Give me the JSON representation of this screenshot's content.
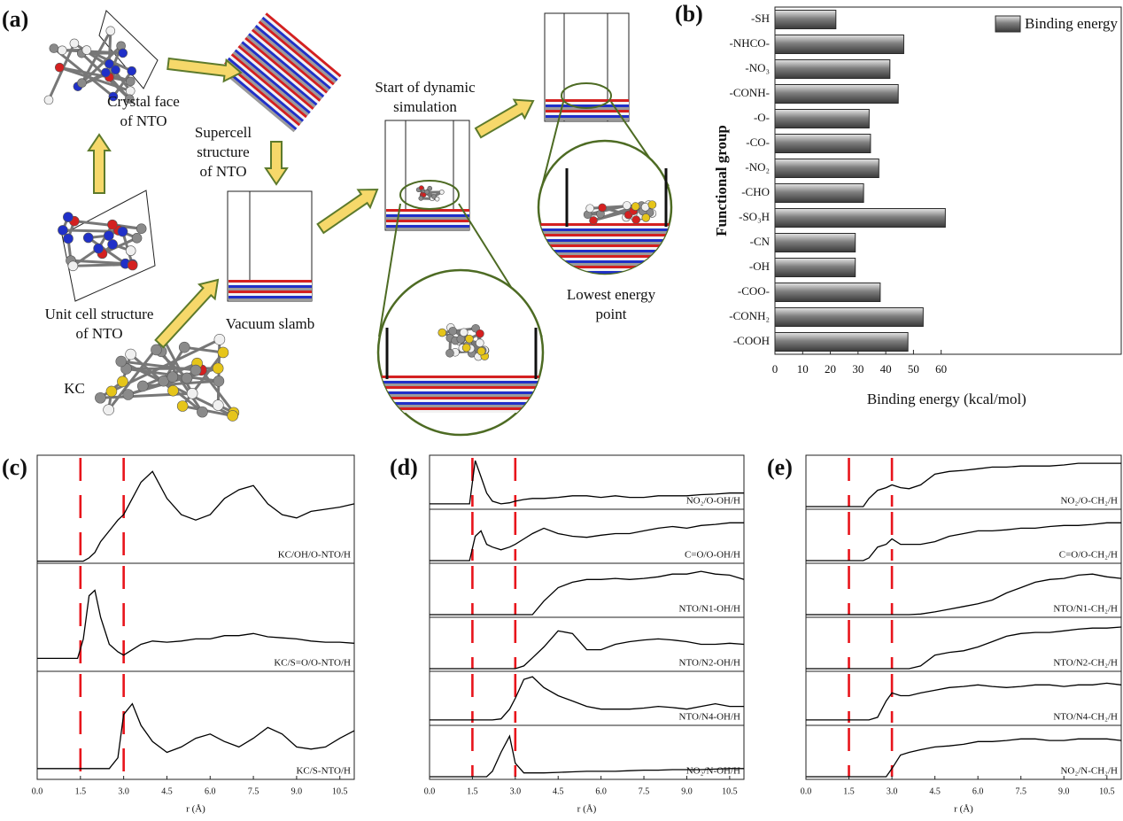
{
  "panel_labels": {
    "a": "(a)",
    "b": "(b)",
    "c": "(c)",
    "d": "(d)",
    "e": "(e)"
  },
  "schematic": {
    "crystal_face": [
      "Crystal face",
      "of NTO"
    ],
    "supercell": [
      "Supercell",
      "structure",
      "of NTO"
    ],
    "unit_cell": [
      "Unit cell structure",
      "of NTO"
    ],
    "vacuum": "Vacuum slamb",
    "kc": "KC",
    "start": [
      "Start of dynamic",
      "simulation"
    ],
    "lowest": [
      "Lowest energy",
      "point"
    ]
  },
  "chart_data": [
    {
      "type": "bar",
      "orientation": "horizontal",
      "categories": [
        "-SH",
        "-NHCO-",
        "-NO₃",
        "-CONH-",
        "-O-",
        "-CO-",
        "-NO₂",
        "-CHO",
        "-SO₃H",
        "-CN",
        "-OH",
        "-COO-",
        "-CONH₂",
        "-COOH"
      ],
      "series": [
        {
          "name": "Binding energy",
          "color": "#7f7f7f",
          "values": [
            22,
            46.5,
            41.5,
            44.5,
            34,
            34.5,
            37.5,
            32,
            61.5,
            29,
            29,
            38,
            53.5,
            48
          ]
        }
      ],
      "xlabel": "Binding energy (kcal/mol)",
      "ylabel": "Functional group",
      "xlim": [
        0,
        125
      ],
      "xticks": [
        0,
        10,
        20,
        30,
        40,
        50,
        60
      ],
      "legend": "upper right"
    },
    {
      "type": "line",
      "layout": "stacked",
      "x": [
        0,
        1,
        1.4,
        1.6,
        1.8,
        2,
        2.2,
        2.5,
        2.8,
        3,
        3.3,
        3.6,
        4,
        4.5,
        5,
        5.5,
        6,
        6.5,
        7,
        7.5,
        8,
        8.5,
        9,
        9.5,
        10,
        10.5,
        11
      ],
      "xlim": [
        0,
        11
      ],
      "ylim": [
        0,
        1
      ],
      "xticks": [
        {
          "value": 0,
          "label": "0.0"
        },
        1.5,
        {
          "value": 3,
          "label": "3.0"
        },
        4.5,
        {
          "value": 6,
          "label": "6.0"
        },
        7.5,
        {
          "value": 9,
          "label": "9.0"
        },
        10.5
      ],
      "xlabel": "r (Å)",
      "vlines": [
        1.5,
        3
      ],
      "vline_color": "#e8141b",
      "series": [
        {
          "name": "KC/OH/O-NTO/H",
          "color": "#000000",
          "values": [
            0.02,
            0.02,
            0.02,
            0.02,
            0.05,
            0.1,
            0.2,
            0.3,
            0.4,
            0.45,
            0.6,
            0.75,
            0.85,
            0.6,
            0.45,
            0.4,
            0.45,
            0.6,
            0.68,
            0.72,
            0.55,
            0.45,
            0.42,
            0.48,
            0.5,
            0.52,
            0.55
          ]
        },
        {
          "name": "KC/S=O/O-NTO/H",
          "color": "#000000",
          "values": [
            0.12,
            0.12,
            0.12,
            0.3,
            0.7,
            0.75,
            0.5,
            0.25,
            0.18,
            0.15,
            0.2,
            0.25,
            0.28,
            0.27,
            0.28,
            0.3,
            0.3,
            0.33,
            0.33,
            0.35,
            0.32,
            0.31,
            0.3,
            0.28,
            0.27,
            0.27,
            0.26
          ]
        },
        {
          "name": "KC/S-NTO/H",
          "color": "#000000",
          "values": [
            0.1,
            0.1,
            0.1,
            0.1,
            0.1,
            0.1,
            0.1,
            0.1,
            0.2,
            0.6,
            0.7,
            0.5,
            0.35,
            0.25,
            0.3,
            0.38,
            0.42,
            0.35,
            0.3,
            0.38,
            0.48,
            0.42,
            0.3,
            0.28,
            0.3,
            0.38,
            0.45
          ]
        }
      ]
    },
    {
      "type": "line",
      "layout": "stacked",
      "x": [
        0,
        1,
        1.4,
        1.6,
        1.8,
        2,
        2.2,
        2.5,
        2.8,
        3,
        3.3,
        3.6,
        4,
        4.5,
        5,
        5.5,
        6,
        6.5,
        7,
        7.5,
        8,
        8.5,
        9,
        9.5,
        10,
        10.5,
        11
      ],
      "xlim": [
        0,
        11
      ],
      "ylim": [
        0,
        1
      ],
      "xticks": [
        {
          "value": 0,
          "label": "0.0"
        },
        1.5,
        {
          "value": 3,
          "label": "3.0"
        },
        4.5,
        {
          "value": 6,
          "label": "6.0"
        },
        7.5,
        {
          "value": 9,
          "label": "9.0"
        },
        10.5
      ],
      "xlabel": "r (Å)",
      "vlines": [
        1.5,
        3
      ],
      "vline_color": "#e8141b",
      "series": [
        {
          "name": "NO₂/O-OH/H",
          "color": "#000000",
          "values": [
            0.1,
            0.1,
            0.1,
            0.9,
            0.6,
            0.3,
            0.15,
            0.1,
            0.12,
            0.15,
            0.18,
            0.2,
            0.2,
            0.22,
            0.25,
            0.25,
            0.22,
            0.25,
            0.22,
            0.22,
            0.25,
            0.25,
            0.25,
            0.27,
            0.28,
            0.3,
            0.3
          ]
        },
        {
          "name": "C=O/O-OH/H",
          "color": "#000000",
          "values": [
            0.05,
            0.05,
            0.05,
            0.5,
            0.6,
            0.35,
            0.3,
            0.25,
            0.3,
            0.35,
            0.45,
            0.55,
            0.65,
            0.55,
            0.5,
            0.48,
            0.52,
            0.55,
            0.55,
            0.6,
            0.65,
            0.68,
            0.65,
            0.7,
            0.72,
            0.75,
            0.75
          ]
        },
        {
          "name": "NTO/N1-OH/H",
          "color": "#000000",
          "values": [
            0.05,
            0.05,
            0.05,
            0.05,
            0.05,
            0.05,
            0.05,
            0.05,
            0.05,
            0.05,
            0.05,
            0.05,
            0.3,
            0.55,
            0.65,
            0.7,
            0.7,
            0.72,
            0.7,
            0.72,
            0.75,
            0.8,
            0.8,
            0.85,
            0.8,
            0.78,
            0.7
          ]
        },
        {
          "name": "NTO/N2-OH/H",
          "color": "#000000",
          "values": [
            0.05,
            0.05,
            0.05,
            0.05,
            0.05,
            0.05,
            0.05,
            0.05,
            0.05,
            0.05,
            0.1,
            0.25,
            0.45,
            0.75,
            0.7,
            0.4,
            0.4,
            0.5,
            0.55,
            0.58,
            0.6,
            0.58,
            0.55,
            0.5,
            0.5,
            0.52,
            0.5
          ]
        },
        {
          "name": "NTO/N4-OH/H",
          "color": "#000000",
          "values": [
            0.1,
            0.1,
            0.1,
            0.1,
            0.1,
            0.1,
            0.1,
            0.12,
            0.3,
            0.5,
            0.85,
            0.9,
            0.7,
            0.55,
            0.45,
            0.35,
            0.3,
            0.3,
            0.3,
            0.32,
            0.35,
            0.33,
            0.3,
            0.35,
            0.4,
            0.35,
            0.35
          ]
        },
        {
          "name": "NO₂/N-OH/H",
          "color": "#000000",
          "values": [
            0.05,
            0.05,
            0.05,
            0.05,
            0.05,
            0.05,
            0.15,
            0.5,
            0.8,
            0.3,
            0.12,
            0.12,
            0.12,
            0.13,
            0.14,
            0.15,
            0.15,
            0.15,
            0.16,
            0.17,
            0.17,
            0.18,
            0.18,
            0.18,
            0.19,
            0.2,
            0.2
          ]
        }
      ]
    },
    {
      "type": "line",
      "layout": "stacked",
      "x": [
        0,
        1,
        1.4,
        1.6,
        1.8,
        2,
        2.2,
        2.5,
        2.8,
        3,
        3.3,
        3.6,
        4,
        4.5,
        5,
        5.5,
        6,
        6.5,
        7,
        7.5,
        8,
        8.5,
        9,
        9.5,
        10,
        10.5,
        11
      ],
      "xlim": [
        0,
        11
      ],
      "ylim": [
        0,
        1
      ],
      "xticks": [
        {
          "value": 0,
          "label": "0.0"
        },
        1.5,
        {
          "value": 3,
          "label": "3.0"
        },
        4.5,
        {
          "value": 6,
          "label": "6.0"
        },
        7.5,
        {
          "value": 9,
          "label": "9.0"
        },
        10.5
      ],
      "xlabel": "r (Å)",
      "vlines": [
        1.5,
        3
      ],
      "vline_color": "#e8141b",
      "series": [
        {
          "name": "NO₂/O-CH₂/H",
          "color": "#000000",
          "values": [
            0.05,
            0.05,
            0.05,
            0.05,
            0.05,
            0.05,
            0.2,
            0.35,
            0.4,
            0.45,
            0.4,
            0.38,
            0.45,
            0.65,
            0.7,
            0.72,
            0.75,
            0.78,
            0.78,
            0.8,
            0.8,
            0.8,
            0.82,
            0.85,
            0.85,
            0.85,
            0.85
          ]
        },
        {
          "name": "C=O/O-CH₂/H",
          "color": "#000000",
          "values": [
            0.05,
            0.05,
            0.05,
            0.05,
            0.05,
            0.05,
            0.1,
            0.3,
            0.35,
            0.45,
            0.35,
            0.35,
            0.35,
            0.4,
            0.5,
            0.55,
            0.6,
            0.6,
            0.62,
            0.65,
            0.65,
            0.68,
            0.7,
            0.7,
            0.72,
            0.75,
            0.75
          ]
        },
        {
          "name": "NTO/N1-CH₂/H",
          "color": "#000000",
          "values": [
            0.05,
            0.05,
            0.05,
            0.05,
            0.05,
            0.05,
            0.05,
            0.05,
            0.05,
            0.05,
            0.05,
            0.05,
            0.06,
            0.1,
            0.15,
            0.2,
            0.25,
            0.32,
            0.45,
            0.55,
            0.65,
            0.7,
            0.72,
            0.78,
            0.8,
            0.75,
            0.72
          ]
        },
        {
          "name": "NTO/N2-CH₂/H",
          "color": "#000000",
          "values": [
            0.05,
            0.05,
            0.05,
            0.05,
            0.05,
            0.05,
            0.05,
            0.05,
            0.05,
            0.05,
            0.05,
            0.05,
            0.1,
            0.3,
            0.35,
            0.38,
            0.45,
            0.55,
            0.65,
            0.7,
            0.72,
            0.72,
            0.75,
            0.78,
            0.8,
            0.8,
            0.82
          ]
        },
        {
          "name": "NTO/N4-CH₂/H",
          "color": "#000000",
          "values": [
            0.1,
            0.1,
            0.1,
            0.1,
            0.1,
            0.1,
            0.1,
            0.15,
            0.45,
            0.6,
            0.55,
            0.55,
            0.6,
            0.65,
            0.7,
            0.72,
            0.75,
            0.72,
            0.7,
            0.72,
            0.75,
            0.75,
            0.72,
            0.75,
            0.75,
            0.78,
            0.75
          ]
        },
        {
          "name": "NO₂/N-CH₂/H",
          "color": "#000000",
          "values": [
            0.05,
            0.05,
            0.05,
            0.05,
            0.05,
            0.05,
            0.05,
            0.05,
            0.05,
            0.2,
            0.45,
            0.5,
            0.55,
            0.6,
            0.62,
            0.65,
            0.7,
            0.7,
            0.72,
            0.75,
            0.75,
            0.72,
            0.72,
            0.75,
            0.75,
            0.75,
            0.72
          ]
        }
      ]
    }
  ]
}
